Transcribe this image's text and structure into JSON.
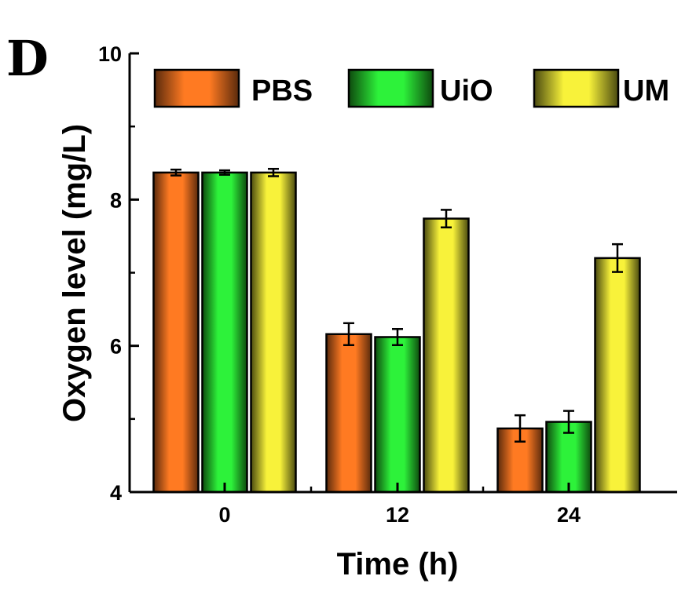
{
  "panel_label": "D",
  "colors": {
    "PBS": [
      "#5a2a0c",
      "#ff7a22"
    ],
    "UiO": [
      "#0e4a0e",
      "#2df23a"
    ],
    "UM": [
      "#4a4a10",
      "#f8f23a"
    ]
  },
  "chart_data": {
    "type": "bar",
    "title": "",
    "xlabel": "Time (h)",
    "ylabel": "Oxygen level (mg/L)",
    "categories": [
      "0",
      "12",
      "24"
    ],
    "ylim": [
      4,
      10
    ],
    "yticks": [
      "4",
      "6",
      "8",
      "10"
    ],
    "grid": false,
    "legend_position": "top",
    "series": [
      {
        "name": "PBS",
        "values": [
          8.37,
          6.16,
          4.87
        ],
        "errors": [
          0.04,
          0.15,
          0.18
        ]
      },
      {
        "name": "UiO",
        "values": [
          8.37,
          6.12,
          4.96
        ],
        "errors": [
          0.03,
          0.11,
          0.15
        ]
      },
      {
        "name": "UM",
        "values": [
          8.37,
          7.74,
          7.2
        ],
        "errors": [
          0.05,
          0.12,
          0.19
        ]
      }
    ]
  }
}
